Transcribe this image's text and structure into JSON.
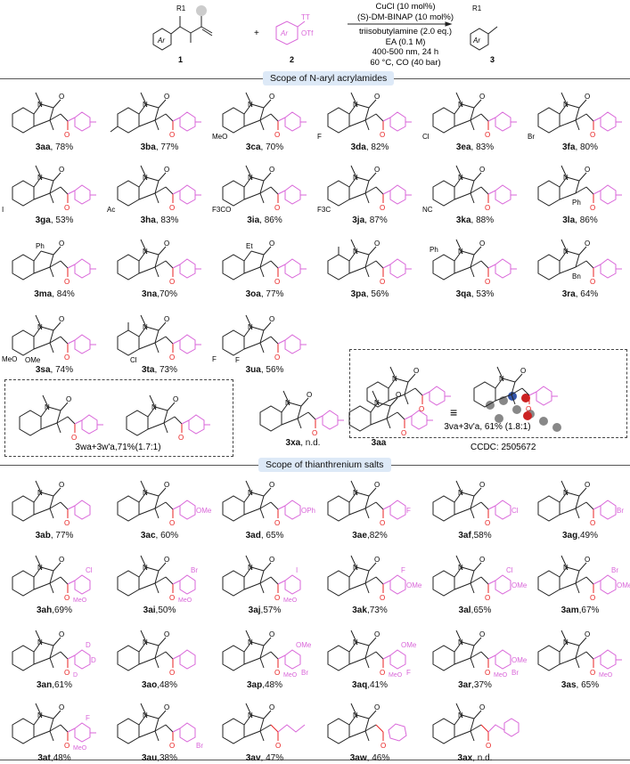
{
  "reaction": {
    "reactant1_label": "1",
    "reactant2_label": "2",
    "product_label": "3",
    "r1": "R1",
    "ar": "Ar",
    "tt": "TT",
    "otf": "OTf",
    "plus": "+",
    "conditions_above": [
      "CuCl (10 mol%)",
      "(S)-DM-BINAP (10 mol%)"
    ],
    "conditions_below": [
      "triisobutylamine (2.0 eq.)",
      "EA (0.1 M)",
      "400-500 nm, 24 h",
      "60 °C, CO (40 bar)"
    ]
  },
  "colors": {
    "aryl": "#d966d9",
    "carbonyl": "#e82020",
    "header_bg": "#dde9f7"
  },
  "section1": {
    "title": "Scope of N-aryl acrylamides"
  },
  "section2": {
    "title": "Scope of thianthrenium salts"
  },
  "compounds1": [
    {
      "id": "3aa",
      "rest": ", 78%",
      "subs": {}
    },
    {
      "id": "3ba",
      "rest": ", 77%",
      "subs": {
        "ring5me": true
      }
    },
    {
      "id": "3ca",
      "rest": ", 70%",
      "subs": {
        "ring": "MeO"
      }
    },
    {
      "id": "3da",
      "rest": ", 82%",
      "subs": {
        "ring": "F"
      }
    },
    {
      "id": "3ea",
      "rest": ", 83%",
      "subs": {
        "ring": "Cl"
      }
    },
    {
      "id": "3fa",
      "rest": ", 80%",
      "subs": {
        "ring": "Br"
      }
    },
    {
      "id": "3ga",
      "rest": ", 53%",
      "subs": {
        "ring": "I"
      }
    },
    {
      "id": "3ha",
      "rest": ", 83%",
      "subs": {
        "ring": "Ac"
      }
    },
    {
      "id": "3ia",
      "rest": ", 86%",
      "subs": {
        "ring": "F3CO"
      }
    },
    {
      "id": "3ja",
      "rest": ", 87%",
      "subs": {
        "ring": "F3C"
      }
    },
    {
      "id": "3ka",
      "rest": ", 88%",
      "subs": {
        "ring": "NC"
      }
    },
    {
      "id": "3la",
      "rest": ", 86%",
      "subs": {
        "c3": "Ph"
      }
    },
    {
      "id": "3ma",
      "rest": ", 84%",
      "subs": {
        "n": "Ph"
      }
    },
    {
      "id": "3na",
      "rest": ",70%",
      "subs": {}
    },
    {
      "id": "3oa",
      "rest": ", 77%",
      "subs": {
        "n": "Et"
      }
    },
    {
      "id": "3pa",
      "rest": ", 56%",
      "subs": {
        "ring7me": true
      }
    },
    {
      "id": "3qa",
      "rest": ", 53%",
      "subs": {
        "ring7": "Ph"
      }
    },
    {
      "id": "3ra",
      "rest": ", 64%",
      "subs": {
        "c3": "Bn"
      }
    },
    {
      "id": "3sa",
      "rest": ", 74%",
      "subs": {
        "ring": "MeO",
        "ring6": "OMe"
      }
    },
    {
      "id": "3ta",
      "rest": ", 73%",
      "subs": {
        "ring6": "Cl",
        "ring7me": true
      }
    },
    {
      "id": "3ua",
      "rest": ", 56%",
      "subs": {
        "ring": "F",
        "ring6": "F"
      }
    }
  ],
  "box_3va": {
    "label": "3va+3v'a, 61% (1.8:1)"
  },
  "box_3wa": {
    "label": "3wa+3w'a,71%(1.7:1)"
  },
  "compound_3xa": {
    "id": "3xa",
    "rest": ", n.d.",
    "n": "HN"
  },
  "crystal": {
    "id": "3aa",
    "equiv": "≡",
    "ccdc": "CCDC: 2505672"
  },
  "compounds2": [
    {
      "id": "3ab",
      "rest": ", 77%",
      "subs": {
        "nopara": true
      }
    },
    {
      "id": "3ac",
      "rest": ", 60%",
      "subs": {
        "para": "OMe"
      }
    },
    {
      "id": "3ad",
      "rest": ", 65%",
      "subs": {
        "para": "OPh"
      }
    },
    {
      "id": "3ae",
      "rest": ",82%",
      "subs": {
        "para": "F"
      }
    },
    {
      "id": "3af",
      "rest": ",58%",
      "subs": {
        "para": "Cl"
      }
    },
    {
      "id": "3ag",
      "rest": ",49%",
      "subs": {
        "para": "Br"
      }
    },
    {
      "id": "3ah",
      "rest": ",69%",
      "subs": {
        "meta": "Cl",
        "ortho": "MeO",
        "nopara": true
      }
    },
    {
      "id": "3ai",
      "rest": ",50%",
      "subs": {
        "meta": "Br",
        "ortho": "MeO",
        "nopara": true
      }
    },
    {
      "id": "3aj",
      "rest": ",57%",
      "subs": {
        "meta": "I",
        "ortho": "MeO",
        "nopara": true
      }
    },
    {
      "id": "3ak",
      "rest": ",73%",
      "subs": {
        "meta": "F",
        "para": "OMe"
      }
    },
    {
      "id": "3al",
      "rest": ",65%",
      "subs": {
        "meta": "Cl",
        "para": "OMe"
      }
    },
    {
      "id": "3am",
      "rest": ",67%",
      "subs": {
        "meta": "Br",
        "para": "OMe"
      }
    },
    {
      "id": "3an",
      "rest": ",61%",
      "subs": {
        "para": "D",
        "meta": "D",
        "ortho": "D",
        "nopara": false
      }
    },
    {
      "id": "3ao",
      "rest": ",48%",
      "subs": {
        "nopara": true
      }
    },
    {
      "id": "3ap",
      "rest": ",48%",
      "subs": {
        "ortho": "MeO",
        "meta": "OMe",
        "low": "Br",
        "nopara": true
      }
    },
    {
      "id": "3aq",
      "rest": ",41%",
      "subs": {
        "ortho": "MeO",
        "meta": "OMe",
        "low": "F",
        "nopara": true
      }
    },
    {
      "id": "3ar",
      "rest": ",37%",
      "subs": {
        "ortho": "MeO",
        "para": "OMe",
        "low": "Br"
      }
    },
    {
      "id": "3as",
      "rest": ", 65%",
      "subs": {
        "ortho": "MeO"
      }
    },
    {
      "id": "3at",
      "rest": ",48%",
      "subs": {
        "meta": "F",
        "ortho": "MeO"
      }
    },
    {
      "id": "3au",
      "rest": ",38%",
      "subs": {
        "low": "Br",
        "nopara": true
      }
    },
    {
      "id": "3av",
      "rest": ", 47%",
      "subs": {
        "alkyl": "chain"
      }
    },
    {
      "id": "3aw",
      "rest": ", 46%",
      "subs": {
        "alkyl": "cyclohexyl"
      }
    },
    {
      "id": "3ax",
      "rest": ", n.d.",
      "subs": {
        "alkyl": "styryl"
      }
    }
  ]
}
